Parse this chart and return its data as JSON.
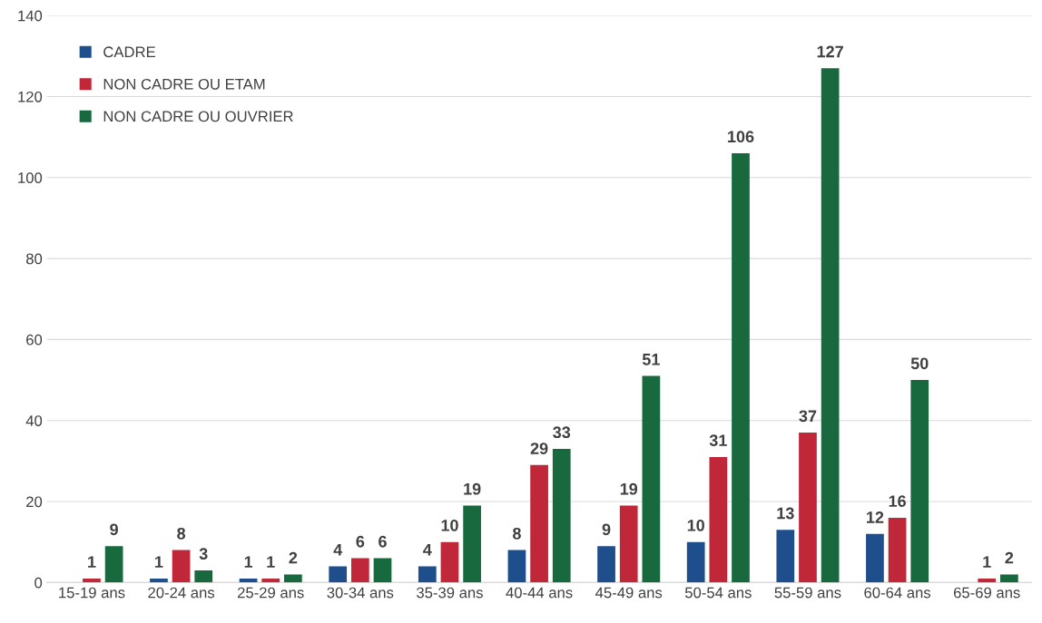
{
  "chart_data": {
    "type": "bar",
    "categories": [
      "15-19 ans",
      "20-24 ans",
      "25-29 ans",
      "30-34 ans",
      "35-39 ans",
      "40-44 ans",
      "45-49 ans",
      "50-54 ans",
      "55-59 ans",
      "60-64 ans",
      "65-69 ans"
    ],
    "series": [
      {
        "name": "CADRE",
        "color": "#1f4e8c",
        "values": [
          null,
          1,
          1,
          4,
          4,
          8,
          9,
          10,
          13,
          12,
          null
        ]
      },
      {
        "name": "NON CADRE OU ETAM",
        "color": "#c0283a",
        "values": [
          1,
          8,
          1,
          6,
          10,
          29,
          19,
          31,
          37,
          16,
          1
        ]
      },
      {
        "name": "NON CADRE OU OUVRIER",
        "color": "#19693f",
        "values": [
          9,
          3,
          2,
          6,
          19,
          33,
          51,
          106,
          127,
          50,
          2
        ]
      }
    ],
    "ylim": [
      0,
      140
    ],
    "yticks": [
      0,
      20,
      40,
      60,
      80,
      100,
      120,
      140
    ],
    "grid": "y",
    "legend": "top left",
    "data_labels": true
  }
}
